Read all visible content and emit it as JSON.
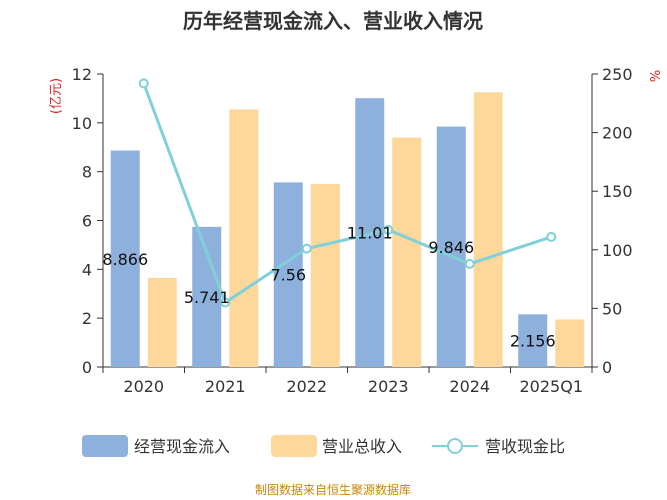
{
  "chart_data": {
    "type": "bar",
    "title": "历年经营现金流入、营业收入情况",
    "categories": [
      "2020",
      "2021",
      "2022",
      "2023",
      "2024",
      "2025Q1"
    ],
    "series": [
      {
        "name": "经营现金流入",
        "kind": "bar",
        "axis": "left",
        "color": "#8eb0dc",
        "values": [
          8.866,
          5.741,
          7.56,
          11.01,
          9.846,
          2.156
        ],
        "labels": [
          "8.866",
          "5.741",
          "7.56",
          "11.01",
          "9.846",
          "2.156"
        ]
      },
      {
        "name": "营业总收入",
        "kind": "bar",
        "axis": "left",
        "color": "#fed89b",
        "values": [
          3.65,
          10.55,
          7.5,
          9.4,
          11.25,
          1.95
        ]
      },
      {
        "name": "营收现金比",
        "kind": "line",
        "axis": "right",
        "color": "#7fd0d8",
        "values": [
          242,
          55,
          101,
          117,
          88,
          111
        ]
      }
    ],
    "y_left": {
      "unit": "(亿元)",
      "min": 0,
      "max": 12,
      "ticks": [
        0,
        2,
        4,
        6,
        8,
        10,
        12
      ]
    },
    "y_right": {
      "unit": "%",
      "min": 0,
      "max": 250,
      "ticks": [
        0,
        50,
        100,
        150,
        200,
        250
      ]
    },
    "legend_position": "bottom",
    "grid": false
  },
  "source": "制图数据来自恒生聚源数据库"
}
